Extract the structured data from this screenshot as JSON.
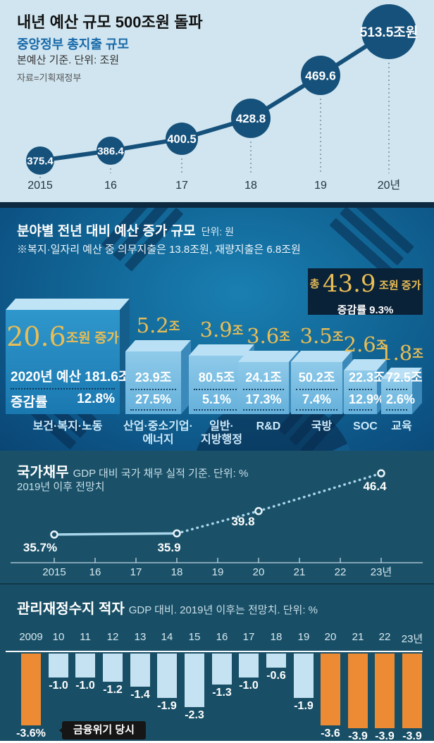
{
  "s1": {
    "title": "내년 예산 규모 500조원 돌파",
    "subtitle": "중앙정부 총지출 규모",
    "basis": "본예산 기준. 단위: 조원",
    "source": "자료=기획재정부"
  },
  "s2": {
    "title": "분야별 전년 대비 예산 증가 규모",
    "unit": "단위: 원",
    "note": "※복지·일자리 예산 중 의무지출은 13.8조원, 재량지출은 6.8조원",
    "badge": {
      "prefix": "총",
      "value": "43.9",
      "suffix": "조원 증가",
      "rate": "증감률 9.3%"
    }
  },
  "s3": {
    "title": "국가채무",
    "subtitle": "GDP 대비 국가 채무 실적 기준. 단위: %",
    "subtitle2": "2019년 이후 전망치"
  },
  "s4": {
    "title": "관리재정수지 적자",
    "subtitle": "GDP 대비. 2019년 이후는 전망치. 단위: %",
    "callout": "금융위기 당시"
  },
  "colors": {
    "navy_bubble": "#15517b",
    "section1_bg": "#d0e5f0",
    "section2_bg": "#116696",
    "gold": "#e9bd55",
    "teal_bg": "#1a5168",
    "orange_bar": "#ec8b33",
    "lightblue_bar": "#c5e2f2",
    "badge_bg": "#0a2238"
  },
  "chart_data": [
    {
      "id": "total-expenditure",
      "type": "line",
      "title": "중앙정부 총지출 규모",
      "unit": "조원",
      "x": [
        "2015",
        "16",
        "17",
        "18",
        "19",
        "20년"
      ],
      "values": [
        375.4,
        386.4,
        400.5,
        428.8,
        469.6,
        513.5
      ],
      "point_labels": [
        "375.4",
        "386.4",
        "400.5",
        "428.8",
        "469.6",
        "513.5조원"
      ]
    },
    {
      "id": "sector-budget-increase",
      "type": "bar",
      "title": "분야별 전년 대비 예산 증가 규모",
      "unit": "원",
      "total_label": "총 43.9조원 증가",
      "total_rate": "증감률 9.3%",
      "categories": [
        "보건·복지·노동",
        "산업·중소기업·에너지",
        "일반·지방행정",
        "R&D",
        "국방",
        "SOC",
        "교육"
      ],
      "series": [
        {
          "name": "전년 대비 증가(조원)",
          "values": [
            20.6,
            5.2,
            3.9,
            3.6,
            3.5,
            2.6,
            1.8
          ]
        },
        {
          "name": "2020년 예산(조원)",
          "values": [
            181.6,
            23.9,
            80.5,
            24.1,
            50.2,
            22.3,
            72.5
          ]
        },
        {
          "name": "증감률(%)",
          "values": [
            12.8,
            27.5,
            5.1,
            17.3,
            7.4,
            12.9,
            2.6
          ]
        }
      ],
      "bars": [
        {
          "cat_lines": [
            "보건·복지·노동"
          ],
          "gold_num": "20.6",
          "gold_suffix": "조원 증가",
          "row1": "2020년 예산 181.6조",
          "row2_left": "증감률",
          "row2_right": "12.8%"
        },
        {
          "cat_lines": [
            "산업·중소기업·",
            "에너지"
          ],
          "gold_num": "5.2",
          "gold_suffix": "조",
          "row1": "23.9조",
          "row2": "27.5%"
        },
        {
          "cat_lines": [
            "일반·",
            "지방행정"
          ],
          "gold_num": "3.9",
          "gold_suffix": "조",
          "row1": "80.5조",
          "row2": "5.1%"
        },
        {
          "cat_lines": [
            "R&D"
          ],
          "gold_num": "3.6",
          "gold_suffix": "조",
          "row1": "24.1조",
          "row2": "17.3%"
        },
        {
          "cat_lines": [
            "국방"
          ],
          "gold_num": "3.5",
          "gold_suffix": "조",
          "row1": "50.2조",
          "row2": "7.4%"
        },
        {
          "cat_lines": [
            "SOC"
          ],
          "gold_num": "2.6",
          "gold_suffix": "조",
          "row1": "22.3조",
          "row2": "12.9%"
        },
        {
          "cat_lines": [
            "교육"
          ],
          "gold_num": "1.8",
          "gold_suffix": "조",
          "row1": "72.5조",
          "row2": "2.6%"
        }
      ]
    },
    {
      "id": "national-debt",
      "type": "line",
      "title": "국가채무",
      "unit": "%",
      "x": [
        "2015",
        "16",
        "17",
        "18",
        "19",
        "20",
        "21",
        "22",
        "23년"
      ],
      "points": [
        {
          "x": "2015",
          "value": 35.7,
          "label": "35.7%",
          "forecast": false
        },
        {
          "x": "18",
          "value": 35.9,
          "label": "35.9",
          "forecast": false
        },
        {
          "x": "20",
          "value": 39.8,
          "label": "39.8",
          "forecast": true
        },
        {
          "x": "23년",
          "value": 46.4,
          "label": "46.4",
          "forecast": true
        }
      ]
    },
    {
      "id": "fiscal-balance-deficit",
      "type": "bar",
      "title": "관리재정수지 적자",
      "unit": "%",
      "x": [
        "2009",
        "10",
        "11",
        "12",
        "13",
        "14",
        "15",
        "16",
        "17",
        "18",
        "19",
        "20",
        "21",
        "22",
        "23년"
      ],
      "values": [
        -3.6,
        -1.0,
        -1.0,
        -1.2,
        -1.4,
        -1.9,
        -2.3,
        -1.3,
        -1.0,
        -0.6,
        -1.9,
        -3.6,
        -3.9,
        -3.9,
        -3.9
      ],
      "labels": [
        "-3.6%",
        "-1.0",
        "-1.0",
        "-1.2",
        "-1.4",
        "-1.9",
        "-2.3",
        "-1.3",
        "-1.0",
        "-0.6",
        "-1.9",
        "-3.6",
        "-3.9",
        "-3.9",
        "-3.9"
      ],
      "highlight": [
        true,
        false,
        false,
        false,
        false,
        false,
        false,
        false,
        false,
        false,
        false,
        true,
        true,
        true,
        true
      ],
      "callout": "금융위기 당시"
    }
  ]
}
